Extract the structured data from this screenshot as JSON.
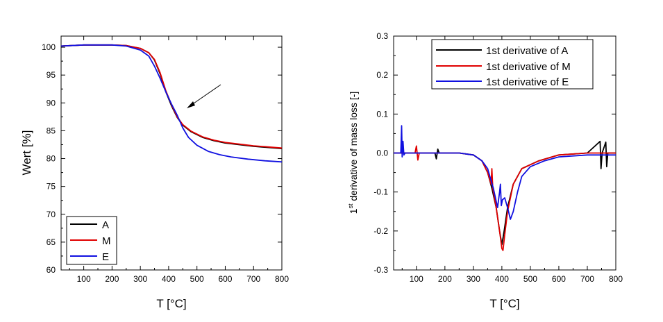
{
  "chart_data": [
    {
      "type": "line",
      "title": "",
      "xlabel": "T [°C]",
      "ylabel": "Wert [%]",
      "xlim": [
        20,
        800
      ],
      "ylim": [
        60,
        102
      ],
      "xticks": [
        100,
        200,
        300,
        400,
        500,
        600,
        700,
        800
      ],
      "yticks": [
        60,
        65,
        70,
        75,
        80,
        85,
        90,
        95,
        100
      ],
      "legend_position": "bottom-left",
      "annotation": "arrow pointing to curve near 450 °C",
      "series": [
        {
          "name": "A",
          "color": "#000000",
          "x": [
            20,
            100,
            200,
            250,
            300,
            330,
            350,
            370,
            390,
            410,
            430,
            450,
            480,
            520,
            560,
            600,
            650,
            700,
            750,
            800
          ],
          "y": [
            100.2,
            100.4,
            100.4,
            100.3,
            99.8,
            99.0,
            97.7,
            95.2,
            92.0,
            89.5,
            87.4,
            86.0,
            84.8,
            83.8,
            83.2,
            82.8,
            82.5,
            82.2,
            82.0,
            81.8
          ]
        },
        {
          "name": "M",
          "color": "#e00000",
          "x": [
            20,
            100,
            200,
            250,
            300,
            330,
            350,
            370,
            390,
            410,
            430,
            450,
            480,
            520,
            560,
            600,
            650,
            700,
            750,
            800
          ],
          "y": [
            100.2,
            100.4,
            100.4,
            100.3,
            99.8,
            99.0,
            97.8,
            95.4,
            92.2,
            89.7,
            87.5,
            86.1,
            84.9,
            83.9,
            83.3,
            82.9,
            82.6,
            82.3,
            82.1,
            81.9
          ]
        },
        {
          "name": "E",
          "color": "#1010e0",
          "x": [
            20,
            100,
            200,
            250,
            300,
            330,
            350,
            370,
            390,
            410,
            430,
            450,
            470,
            500,
            540,
            580,
            620,
            680,
            740,
            800
          ],
          "y": [
            100.2,
            100.4,
            100.4,
            100.2,
            99.5,
            98.4,
            96.6,
            94.4,
            92.0,
            89.8,
            87.8,
            85.5,
            83.8,
            82.4,
            81.3,
            80.7,
            80.3,
            79.9,
            79.6,
            79.4
          ]
        }
      ]
    },
    {
      "type": "line",
      "title": "",
      "xlabel": "T [°C]",
      "ylabel_pre": "1",
      "ylabel_sup": "st",
      "ylabel_post": " derivative of mass loss [-]",
      "xlim": [
        20,
        800
      ],
      "ylim": [
        -0.3,
        0.3
      ],
      "xticks": [
        100,
        200,
        300,
        400,
        500,
        600,
        700,
        800
      ],
      "yticks": [
        -0.3,
        -0.2,
        -0.1,
        0.0,
        0.1,
        0.2,
        0.3
      ],
      "ytick_labels": [
        "-0.3",
        "-0.2",
        "-0.1",
        "0.0",
        "0.1",
        "0.2",
        "0.3"
      ],
      "legend_position": "top-right",
      "series": [
        {
          "name": "1st derivative of A",
          "color": "#000000",
          "x": [
            20,
            100,
            165,
            170,
            175,
            180,
            250,
            300,
            330,
            350,
            365,
            380,
            392,
            400,
            408,
            420,
            440,
            470,
            500,
            530,
            600,
            700,
            745,
            748,
            752,
            765,
            768,
            772,
            800
          ],
          "y": [
            0.0,
            0.0,
            0.0,
            -0.015,
            0.01,
            0.0,
            0.0,
            -0.005,
            -0.02,
            -0.05,
            -0.09,
            -0.14,
            -0.2,
            -0.235,
            -0.2,
            -0.14,
            -0.08,
            -0.04,
            -0.03,
            -0.02,
            -0.005,
            0.0,
            0.03,
            -0.04,
            0.0,
            0.028,
            -0.035,
            0.0,
            0.0
          ]
        },
        {
          "name": "1st derivative of M",
          "color": "#e00000",
          "x": [
            20,
            95,
            100,
            105,
            110,
            200,
            250,
            300,
            330,
            350,
            362,
            365,
            368,
            380,
            392,
            400,
            404,
            410,
            420,
            440,
            470,
            500,
            530,
            600,
            700,
            800
          ],
          "y": [
            0.0,
            0.0,
            0.018,
            -0.018,
            0.0,
            0.0,
            0.0,
            -0.005,
            -0.02,
            -0.05,
            -0.08,
            -0.04,
            -0.09,
            -0.14,
            -0.2,
            -0.245,
            -0.25,
            -0.21,
            -0.15,
            -0.08,
            -0.04,
            -0.03,
            -0.02,
            -0.005,
            0.0,
            0.0
          ]
        },
        {
          "name": "1st derivative of E",
          "color": "#1010e0",
          "x": [
            20,
            45,
            48,
            50,
            53,
            56,
            60,
            100,
            200,
            250,
            300,
            330,
            350,
            370,
            385,
            392,
            395,
            398,
            402,
            410,
            420,
            430,
            440,
            455,
            470,
            500,
            550,
            600,
            700,
            800
          ],
          "y": [
            0.0,
            0.0,
            0.07,
            -0.01,
            0.03,
            -0.005,
            0.0,
            0.0,
            0.0,
            0.0,
            -0.005,
            -0.02,
            -0.04,
            -0.09,
            -0.14,
            -0.1,
            -0.08,
            -0.135,
            -0.12,
            -0.115,
            -0.14,
            -0.17,
            -0.15,
            -0.1,
            -0.06,
            -0.035,
            -0.02,
            -0.01,
            -0.005,
            -0.005
          ]
        }
      ]
    }
  ]
}
